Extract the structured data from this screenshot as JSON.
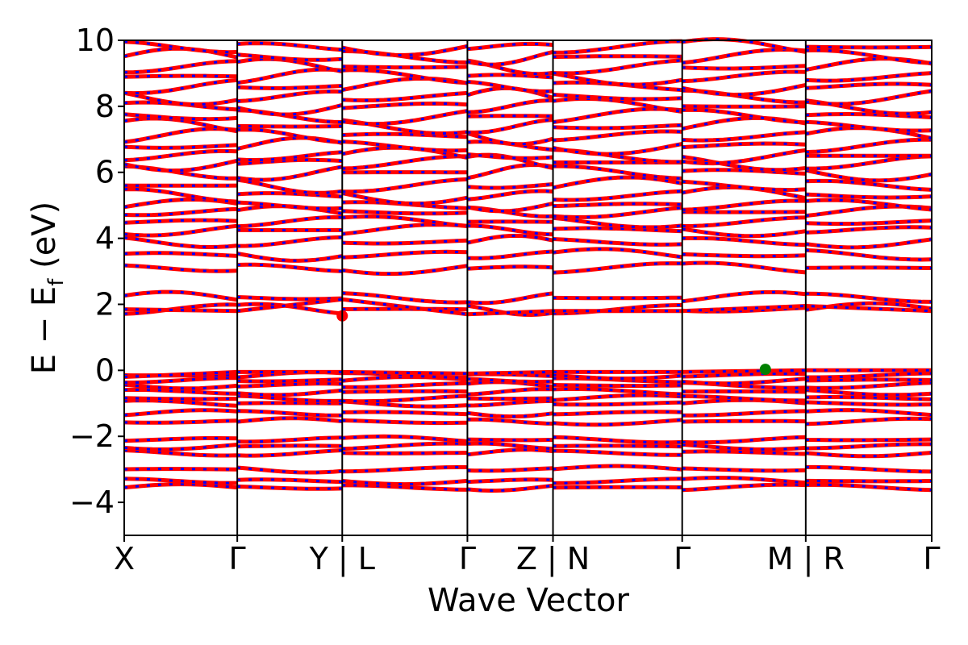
{
  "chart_data": {
    "type": "line",
    "title": "",
    "xlabel": "Wave Vector",
    "ylabel": "E − E_f (eV)",
    "ylim": [
      -5,
      10
    ],
    "yticks": [
      -4,
      -2,
      0,
      2,
      4,
      6,
      8,
      10
    ],
    "ytick_labels": [
      "−4",
      "−2",
      "0",
      "2",
      "4",
      "6",
      "8",
      "10"
    ],
    "grid": false,
    "legend": "none",
    "kpath": {
      "x_range": [
        0,
        1
      ],
      "boundaries": [
        0.0,
        0.14,
        0.27,
        0.425,
        0.531,
        0.691,
        0.844,
        1.0
      ],
      "labels": [
        "X",
        "Γ",
        "Y | L",
        "Γ",
        "Z | N",
        "Γ",
        "M | R",
        "Γ"
      ]
    },
    "segments": [
      "X-Γ-Y",
      "L-Γ-Z",
      "N-Γ-M",
      "R-Γ"
    ],
    "band_colors": {
      "solid": "#ff0000",
      "dashed": "#0000ff"
    },
    "bands_representative": {
      "conduction_lowest": {
        "k": [
          0.0,
          0.14,
          0.27,
          0.425,
          0.531,
          0.691,
          0.844,
          1.0
        ],
        "E": [
          1.85,
          1.8,
          2.15,
          1.7,
          1.8,
          1.8,
          1.95,
          1.8
        ]
      },
      "valence_top": {
        "k": [
          0.0,
          0.14,
          0.27,
          0.425,
          0.531,
          0.691,
          0.844,
          1.0
        ],
        "E": [
          -0.2,
          -0.05,
          -0.05,
          -0.1,
          -0.05,
          -0.05,
          0.0,
          0.0
        ]
      }
    },
    "markers": [
      {
        "name": "CBM",
        "x": 0.27,
        "y": 1.65,
        "color": "#ff0000"
      },
      {
        "name": "VBM",
        "x": 0.794,
        "y": 0.03,
        "color": "#008000"
      }
    ],
    "band_energies_approx": [
      -3.55,
      -3.35,
      -3.0,
      -2.5,
      -2.3,
      -2.1,
      -1.55,
      -1.3,
      -1.0,
      -0.85,
      -0.65,
      -0.45,
      -0.3,
      -0.15,
      1.85,
      2.2,
      3.1,
      3.5,
      3.9,
      4.25,
      4.5,
      4.8,
      5.0,
      5.3,
      5.6,
      6.0,
      6.3,
      6.5,
      6.8,
      7.1,
      7.4,
      7.7,
      8.0,
      8.3,
      8.6,
      8.9,
      9.2,
      9.5,
      9.8
    ]
  }
}
